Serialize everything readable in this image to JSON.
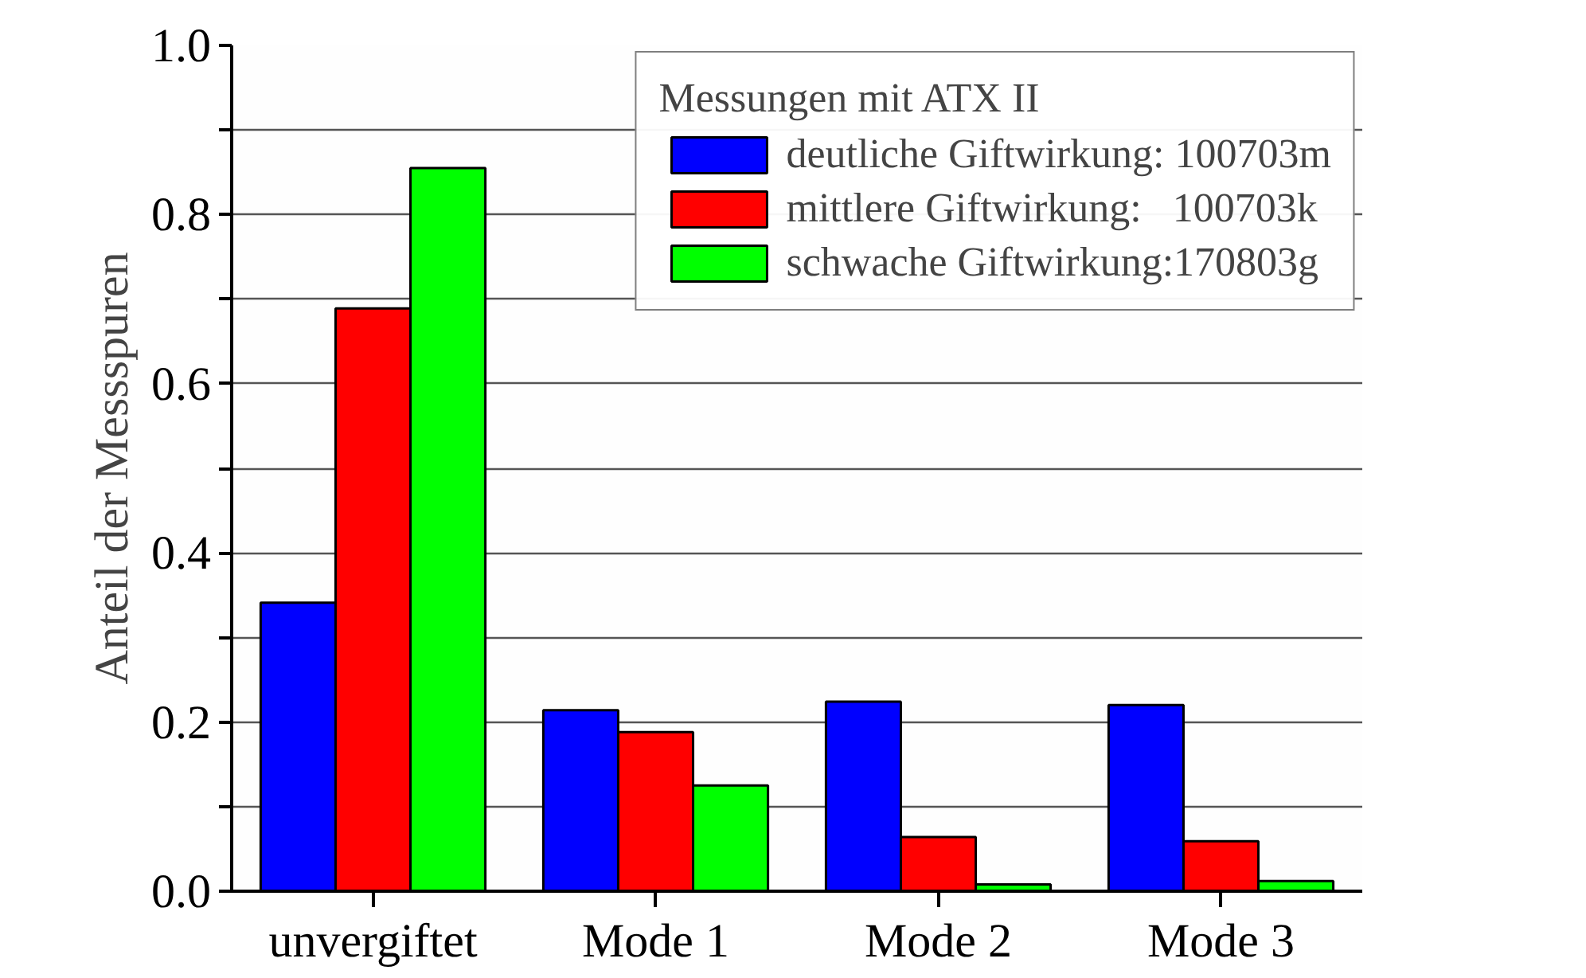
{
  "chart_data": {
    "type": "bar",
    "ylabel": "Anteil der Messspuren",
    "legend_title": "Messungen mit ATX II",
    "categories": [
      "unvergiftet",
      "Mode 1",
      "Mode 2",
      "Mode 3"
    ],
    "series": [
      {
        "name": "deutliche Giftwirkung: 100703m",
        "color": "#0000ff",
        "values": [
          0.341,
          0.214,
          0.224,
          0.22
        ]
      },
      {
        "name": "mittlere Giftwirkung:   100703k",
        "color": "#ff0000",
        "values": [
          0.689,
          0.188,
          0.064,
          0.059
        ]
      },
      {
        "name": "schwache Giftwirkung:170803g",
        "color": "#00ff00",
        "values": [
          0.855,
          0.125,
          0.008,
          0.012
        ]
      }
    ],
    "ylim": [
      0,
      1.0
    ],
    "yticks": [
      {
        "value": 0,
        "label": "0.0"
      },
      {
        "value": 0.1,
        "label": null
      },
      {
        "value": 0.2,
        "label": "0.2"
      },
      {
        "value": 0.3,
        "label": null
      },
      {
        "value": 0.4,
        "label": "0.4"
      },
      {
        "value": 0.5,
        "label": null
      },
      {
        "value": 0.6,
        "label": "0.6"
      },
      {
        "value": 0.7,
        "label": null
      },
      {
        "value": 0.8,
        "label": "0.8"
      },
      {
        "value": 0.9,
        "label": null
      },
      {
        "value": 1.0,
        "label": "1.0"
      }
    ],
    "grid": "y",
    "legend": "top right"
  }
}
